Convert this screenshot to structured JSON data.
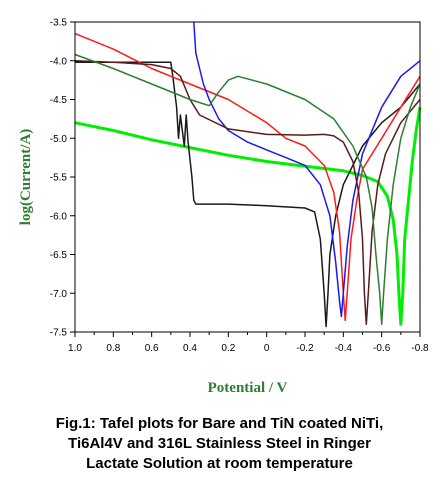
{
  "caption": {
    "line1": "Fig.1: Tafel plots for Bare and TiN coated NiTi,",
    "line2": "Ti6Al4V and 316L Stainless Steel in Ringer",
    "line3": "Lactate Solution at room temperature"
  },
  "chart_data": {
    "type": "line",
    "title": "",
    "xlabel": "Potential / V",
    "ylabel": "log(Current/A)",
    "xlim": [
      1.0,
      -0.8
    ],
    "ylim": [
      -7.5,
      -3.5
    ],
    "x_reversed": true,
    "xticks": [
      "1.0",
      "0.8",
      "0.6",
      "0.4",
      "0.2",
      "0",
      "-0.2",
      "-0.4",
      "-0.6",
      "-0.8"
    ],
    "xtick_values": [
      1.0,
      0.8,
      0.6,
      0.4,
      0.2,
      0,
      -0.2,
      -0.4,
      -0.6,
      -0.8
    ],
    "yticks": [
      "-3.5",
      "-4.0",
      "-4.5",
      "-5.0",
      "-5.5",
      "-6.0",
      "-6.5",
      "-7.0",
      "-7.5"
    ],
    "ytick_values": [
      -3.5,
      -4.0,
      -4.5,
      -5.0,
      -5.5,
      -6.0,
      -6.5,
      -7.0,
      -7.5
    ],
    "grid": false,
    "series": [
      {
        "color": "#00ee00",
        "points": [
          [
            1.0,
            -4.8
          ],
          [
            0.8,
            -4.9
          ],
          [
            0.6,
            -5.02
          ],
          [
            0.4,
            -5.12
          ],
          [
            0.2,
            -5.22
          ],
          [
            0.0,
            -5.3
          ],
          [
            -0.2,
            -5.36
          ],
          [
            -0.4,
            -5.42
          ],
          [
            -0.5,
            -5.48
          ],
          [
            -0.58,
            -5.56
          ],
          [
            -0.63,
            -5.75
          ],
          [
            -0.66,
            -6.05
          ],
          [
            -0.68,
            -6.5
          ],
          [
            -0.69,
            -7.0
          ],
          [
            -0.7,
            -7.4
          ],
          [
            -0.71,
            -7.0
          ],
          [
            -0.72,
            -6.3
          ],
          [
            -0.74,
            -5.8
          ],
          [
            -0.76,
            -5.3
          ],
          [
            -0.78,
            -4.9
          ],
          [
            -0.8,
            -4.6
          ]
        ]
      },
      {
        "color": "#1a1a1a",
        "points": [
          [
            1.0,
            -4.02
          ],
          [
            0.5,
            -4.02
          ],
          [
            0.49,
            -4.2
          ],
          [
            0.47,
            -4.6
          ],
          [
            0.46,
            -5.0
          ],
          [
            0.45,
            -4.7
          ],
          [
            0.44,
            -4.9
          ],
          [
            0.43,
            -5.1
          ],
          [
            0.42,
            -4.7
          ],
          [
            0.41,
            -5.05
          ],
          [
            0.39,
            -5.5
          ],
          [
            0.38,
            -5.8
          ],
          [
            0.37,
            -5.85
          ],
          [
            0.2,
            -5.85
          ],
          [
            0.0,
            -5.87
          ],
          [
            -0.2,
            -5.9
          ],
          [
            -0.25,
            -5.95
          ],
          [
            -0.28,
            -6.3
          ],
          [
            -0.3,
            -7.0
          ],
          [
            -0.31,
            -7.43
          ],
          [
            -0.32,
            -7.0
          ],
          [
            -0.33,
            -6.5
          ],
          [
            -0.36,
            -6.0
          ],
          [
            -0.4,
            -5.6
          ],
          [
            -0.5,
            -5.1
          ],
          [
            -0.6,
            -4.8
          ],
          [
            -0.7,
            -4.6
          ],
          [
            -0.8,
            -4.3
          ]
        ]
      },
      {
        "color": "#ff1a1a",
        "points": [
          [
            1.0,
            -3.65
          ],
          [
            0.8,
            -3.85
          ],
          [
            0.6,
            -4.1
          ],
          [
            0.5,
            -4.2
          ],
          [
            0.4,
            -4.3
          ],
          [
            0.2,
            -4.5
          ],
          [
            0.1,
            -4.65
          ],
          [
            0.0,
            -4.8
          ],
          [
            -0.1,
            -5.0
          ],
          [
            -0.2,
            -5.1
          ],
          [
            -0.3,
            -5.35
          ],
          [
            -0.35,
            -5.7
          ],
          [
            -0.38,
            -6.2
          ],
          [
            -0.4,
            -7.0
          ],
          [
            -0.41,
            -7.35
          ],
          [
            -0.42,
            -7.0
          ],
          [
            -0.44,
            -6.3
          ],
          [
            -0.47,
            -5.8
          ],
          [
            -0.5,
            -5.4
          ],
          [
            -0.6,
            -5.0
          ],
          [
            -0.7,
            -4.6
          ],
          [
            -0.8,
            -4.2
          ]
        ]
      },
      {
        "color": "#1a1aee",
        "points": [
          [
            0.38,
            -3.5
          ],
          [
            0.37,
            -3.9
          ],
          [
            0.35,
            -4.1
          ],
          [
            0.33,
            -4.3
          ],
          [
            0.3,
            -4.5
          ],
          [
            0.28,
            -4.6
          ],
          [
            0.25,
            -4.75
          ],
          [
            0.2,
            -4.9
          ],
          [
            0.1,
            -5.05
          ],
          [
            0.0,
            -5.15
          ],
          [
            -0.1,
            -5.25
          ],
          [
            -0.2,
            -5.35
          ],
          [
            -0.28,
            -5.6
          ],
          [
            -0.33,
            -6.0
          ],
          [
            -0.36,
            -6.6
          ],
          [
            -0.38,
            -7.1
          ],
          [
            -0.39,
            -7.3
          ],
          [
            -0.4,
            -7.0
          ],
          [
            -0.42,
            -6.4
          ],
          [
            -0.45,
            -5.8
          ],
          [
            -0.5,
            -5.2
          ],
          [
            -0.6,
            -4.6
          ],
          [
            -0.7,
            -4.2
          ],
          [
            -0.8,
            -4.0
          ]
        ]
      },
      {
        "color": "#5a1a1a",
        "points": [
          [
            1.0,
            -4.0
          ],
          [
            0.8,
            -4.02
          ],
          [
            0.6,
            -4.05
          ],
          [
            0.5,
            -4.1
          ],
          [
            0.45,
            -4.2
          ],
          [
            0.4,
            -4.5
          ],
          [
            0.35,
            -4.7
          ],
          [
            0.2,
            -4.88
          ],
          [
            0.0,
            -4.95
          ],
          [
            -0.2,
            -4.96
          ],
          [
            -0.3,
            -4.95
          ],
          [
            -0.35,
            -4.97
          ],
          [
            -0.4,
            -5.05
          ],
          [
            -0.45,
            -5.3
          ],
          [
            -0.48,
            -5.7
          ],
          [
            -0.5,
            -6.3
          ],
          [
            -0.51,
            -7.0
          ],
          [
            -0.52,
            -7.4
          ],
          [
            -0.53,
            -7.0
          ],
          [
            -0.55,
            -6.2
          ],
          [
            -0.58,
            -5.6
          ],
          [
            -0.62,
            -5.2
          ],
          [
            -0.7,
            -4.8
          ],
          [
            -0.8,
            -4.5
          ]
        ]
      },
      {
        "color": "#2e7d32",
        "points": [
          [
            1.0,
            -3.92
          ],
          [
            0.8,
            -4.1
          ],
          [
            0.6,
            -4.3
          ],
          [
            0.4,
            -4.5
          ],
          [
            0.3,
            -4.58
          ],
          [
            0.25,
            -4.4
          ],
          [
            0.2,
            -4.25
          ],
          [
            0.15,
            -4.2
          ],
          [
            0.0,
            -4.3
          ],
          [
            -0.2,
            -4.5
          ],
          [
            -0.35,
            -4.75
          ],
          [
            -0.45,
            -5.1
          ],
          [
            -0.52,
            -5.5
          ],
          [
            -0.55,
            -5.9
          ],
          [
            -0.57,
            -6.5
          ],
          [
            -0.59,
            -7.0
          ],
          [
            -0.6,
            -7.4
          ],
          [
            -0.61,
            -7.0
          ],
          [
            -0.63,
            -6.3
          ],
          [
            -0.66,
            -5.6
          ],
          [
            -0.7,
            -5.0
          ],
          [
            -0.75,
            -4.6
          ],
          [
            -0.8,
            -4.3
          ]
        ]
      }
    ]
  }
}
